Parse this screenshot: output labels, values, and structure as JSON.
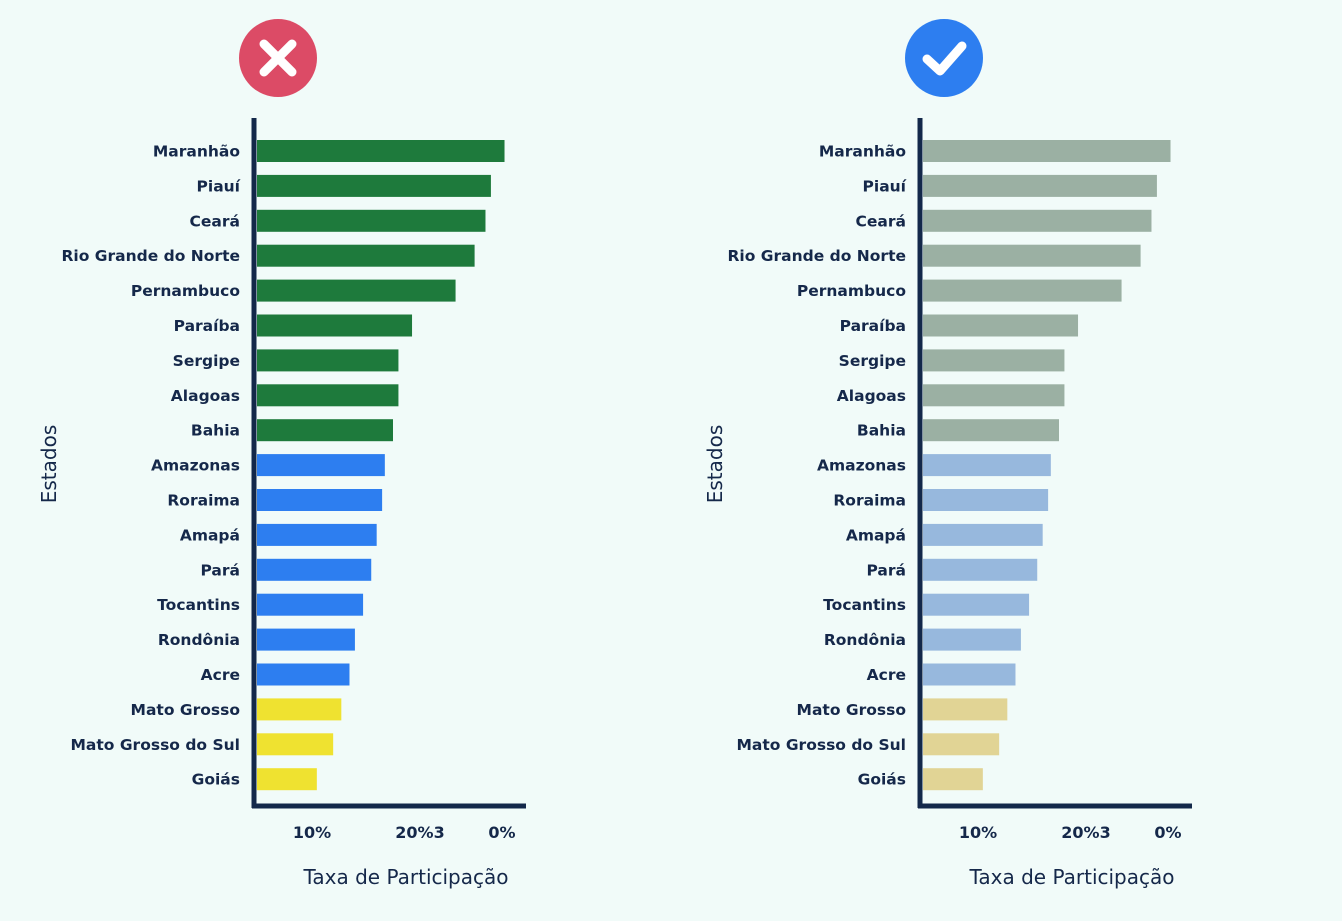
{
  "badges": {
    "bad": {
      "icon": "x-mark-icon",
      "color": "#dc4b66"
    },
    "good": {
      "icon": "check-mark-icon",
      "color": "#2d7ef0"
    }
  },
  "chart_data": [
    {
      "type": "bar",
      "orientation": "horizontal",
      "xlabel": "Taxa de Participação",
      "ylabel": "Estados",
      "xticks": [
        "10%",
        "20%3",
        "0%"
      ],
      "xlim": [
        0,
        10
      ],
      "grid": false,
      "categories": [
        "Maranhão",
        "Piauí",
        "Ceará",
        "Rio Grande do Norte",
        "Pernambuco",
        "Paraíba",
        "Sergipe",
        "Alagoas",
        "Bahia",
        "Amazonas",
        "Roraima",
        "Amapá",
        "Pará",
        "Tocantins",
        "Rondônia",
        "Acre",
        "Mato Grosso",
        "Mato Grosso do Sul",
        "Goiás"
      ],
      "values": [
        9.1,
        8.6,
        8.4,
        8.0,
        7.3,
        5.7,
        5.2,
        5.2,
        5.0,
        4.7,
        4.6,
        4.4,
        4.2,
        3.9,
        3.6,
        3.4,
        3.1,
        2.8,
        2.2
      ],
      "colors": [
        "#1e7a3c",
        "#1e7a3c",
        "#1e7a3c",
        "#1e7a3c",
        "#1e7a3c",
        "#1e7a3c",
        "#1e7a3c",
        "#1e7a3c",
        "#1e7a3c",
        "#2d7ef0",
        "#2d7ef0",
        "#2d7ef0",
        "#2d7ef0",
        "#2d7ef0",
        "#2d7ef0",
        "#2d7ef0",
        "#efe230",
        "#efe230",
        "#efe230"
      ]
    },
    {
      "type": "bar",
      "orientation": "horizontal",
      "xlabel": "Taxa de Participação",
      "ylabel": "Estados",
      "xticks": [
        "10%",
        "20%3",
        "0%"
      ],
      "xlim": [
        0,
        10
      ],
      "grid": false,
      "categories": [
        "Maranhão",
        "Piauí",
        "Ceará",
        "Rio Grande do Norte",
        "Pernambuco",
        "Paraíba",
        "Sergipe",
        "Alagoas",
        "Bahia",
        "Amazonas",
        "Roraima",
        "Amapá",
        "Pará",
        "Tocantins",
        "Rondônia",
        "Acre",
        "Mato Grosso",
        "Mato Grosso do Sul",
        "Goiás"
      ],
      "values": [
        9.1,
        8.6,
        8.4,
        8.0,
        7.3,
        5.7,
        5.2,
        5.2,
        5.0,
        4.7,
        4.6,
        4.4,
        4.2,
        3.9,
        3.6,
        3.4,
        3.1,
        2.8,
        2.2
      ],
      "colors": [
        "#9bb0a3",
        "#9bb0a3",
        "#9bb0a3",
        "#9bb0a3",
        "#9bb0a3",
        "#9bb0a3",
        "#9bb0a3",
        "#9bb0a3",
        "#9bb0a3",
        "#97b8dd",
        "#97b8dd",
        "#97b8dd",
        "#97b8dd",
        "#97b8dd",
        "#97b8dd",
        "#97b8dd",
        "#e1d495",
        "#e1d495",
        "#e1d495"
      ]
    }
  ]
}
